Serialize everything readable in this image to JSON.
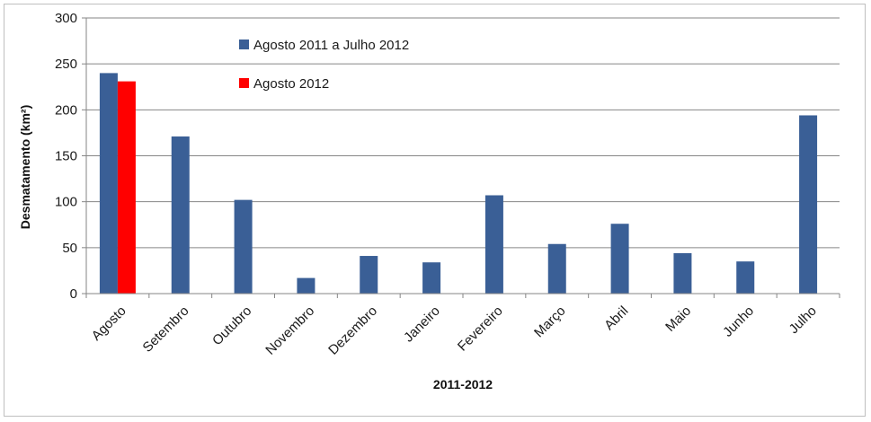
{
  "chart_data": {
    "type": "bar",
    "categories": [
      "Agosto",
      "Setembro",
      "Outubro",
      "Novembro",
      "Dezembro",
      "Janeiro",
      "Fevereiro",
      "Março",
      "Abril",
      "Maio",
      "Junho",
      "Julho"
    ],
    "series": [
      {
        "name": "Agosto 2011 a Julho 2012",
        "color": "#3a5f96",
        "values": [
          240,
          171,
          102,
          17,
          41,
          34,
          107,
          54,
          76,
          44,
          35,
          194
        ]
      },
      {
        "name": "Agosto 2012",
        "color": "#ff0000",
        "values": [
          231,
          null,
          null,
          null,
          null,
          null,
          null,
          null,
          null,
          null,
          null,
          null
        ]
      }
    ],
    "xlabel": "2011-2012",
    "ylabel": "Desmatamento (km²)",
    "ylim": [
      0,
      300
    ],
    "yticks": [
      0,
      50,
      100,
      150,
      200,
      250,
      300
    ],
    "grid": true,
    "legend_position": "top-left inside plot"
  }
}
